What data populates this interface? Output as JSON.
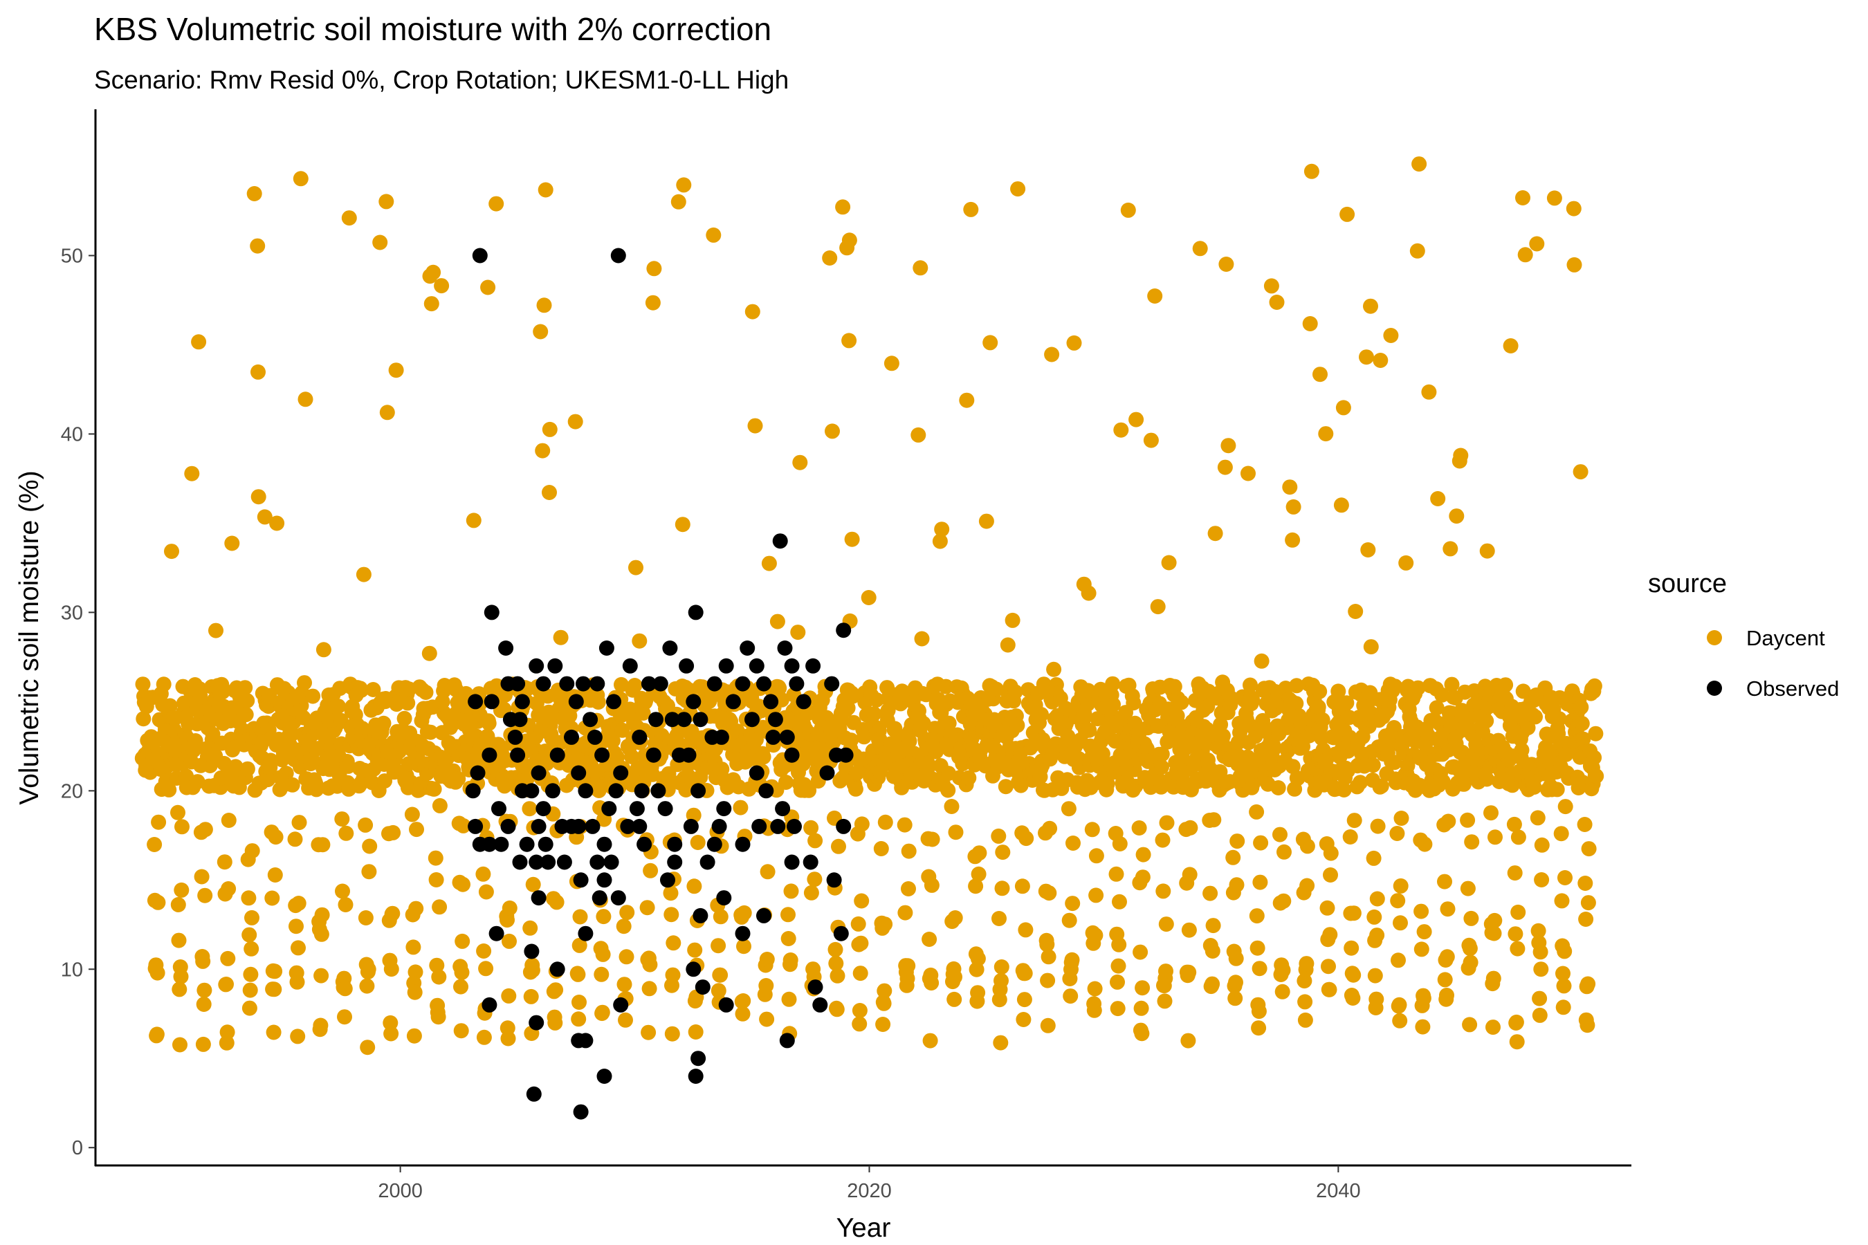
{
  "chart_data": {
    "type": "scatter",
    "title": "KBS Volumetric soil moisture with 2% correction",
    "subtitle": "Scenario: Rmv Resid 0%, Crop Rotation; UKESM1-0-LL High",
    "xlabel": "Year",
    "ylabel": "Volumetric soil moisture (%)",
    "xlim": [
      1987,
      2052.5
    ],
    "ylim": [
      -1,
      58.2
    ],
    "x_ticks": [
      2000,
      2020,
      2040
    ],
    "y_ticks": [
      0,
      10,
      20,
      30,
      40,
      50
    ],
    "grid": false,
    "legend": {
      "title": "source",
      "position": "right"
    },
    "series_style": [
      {
        "name": "Daycent",
        "color": "#E69F00"
      },
      {
        "name": "Observed",
        "color": "#000000"
      }
    ],
    "daycent_model": {
      "x_range": [
        1989,
        2051
      ],
      "baseline_band": [
        20,
        26
      ],
      "seasonal_minimum_range": [
        6,
        10
      ],
      "spike_maximum": 55.2,
      "note_points_daily": true
    },
    "observed_points": [
      [
        2003.4,
        50
      ],
      [
        2009.3,
        50
      ],
      [
        2016.2,
        34
      ],
      [
        2003.9,
        30
      ],
      [
        2012.6,
        30
      ],
      [
        2018.9,
        29
      ],
      [
        2004.5,
        28
      ],
      [
        2008.8,
        28
      ],
      [
        2011.5,
        28
      ],
      [
        2014.8,
        28
      ],
      [
        2016.4,
        28
      ],
      [
        2005.8,
        27
      ],
      [
        2006.6,
        27
      ],
      [
        2009.8,
        27
      ],
      [
        2012.2,
        27
      ],
      [
        2013.9,
        27
      ],
      [
        2015.2,
        27
      ],
      [
        2016.7,
        27
      ],
      [
        2017.6,
        27
      ],
      [
        2004.6,
        26
      ],
      [
        2005.0,
        26
      ],
      [
        2006.1,
        26
      ],
      [
        2007.1,
        26
      ],
      [
        2007.8,
        26
      ],
      [
        2008.4,
        26
      ],
      [
        2010.6,
        26
      ],
      [
        2011.1,
        26
      ],
      [
        2013.4,
        26
      ],
      [
        2014.6,
        26
      ],
      [
        2015.5,
        26
      ],
      [
        2016.9,
        26
      ],
      [
        2018.4,
        26
      ],
      [
        2003.2,
        25
      ],
      [
        2003.9,
        25
      ],
      [
        2005.2,
        25
      ],
      [
        2007.5,
        25
      ],
      [
        2009.1,
        25
      ],
      [
        2012.5,
        25
      ],
      [
        2014.2,
        25
      ],
      [
        2015.8,
        25
      ],
      [
        2017.2,
        25
      ],
      [
        2004.7,
        24
      ],
      [
        2005.1,
        24
      ],
      [
        2008.1,
        24
      ],
      [
        2010.9,
        24
      ],
      [
        2011.6,
        24
      ],
      [
        2012.1,
        24
      ],
      [
        2012.8,
        24
      ],
      [
        2015.0,
        24
      ],
      [
        2016.0,
        24
      ],
      [
        2004.9,
        23
      ],
      [
        2007.3,
        23
      ],
      [
        2008.3,
        23
      ],
      [
        2010.2,
        23
      ],
      [
        2013.3,
        23
      ],
      [
        2013.7,
        23
      ],
      [
        2015.9,
        23
      ],
      [
        2016.5,
        23
      ],
      [
        2003.8,
        22
      ],
      [
        2005.0,
        22
      ],
      [
        2006.7,
        22
      ],
      [
        2008.6,
        22
      ],
      [
        2010.8,
        22
      ],
      [
        2011.9,
        22
      ],
      [
        2012.3,
        22
      ],
      [
        2016.7,
        22
      ],
      [
        2018.6,
        22
      ],
      [
        2019.0,
        22
      ],
      [
        2003.3,
        21
      ],
      [
        2005.9,
        21
      ],
      [
        2007.6,
        21
      ],
      [
        2009.4,
        21
      ],
      [
        2015.2,
        21
      ],
      [
        2018.2,
        21
      ],
      [
        2003.1,
        20
      ],
      [
        2005.2,
        20
      ],
      [
        2005.6,
        20
      ],
      [
        2006.5,
        20
      ],
      [
        2007.9,
        20
      ],
      [
        2009.2,
        20
      ],
      [
        2010.3,
        20
      ],
      [
        2011.0,
        20
      ],
      [
        2012.7,
        20
      ],
      [
        2015.6,
        20
      ],
      [
        2004.2,
        19
      ],
      [
        2006.1,
        19
      ],
      [
        2008.9,
        19
      ],
      [
        2010.1,
        19
      ],
      [
        2011.3,
        19
      ],
      [
        2013.8,
        19
      ],
      [
        2016.3,
        19
      ],
      [
        2003.2,
        18
      ],
      [
        2004.6,
        18
      ],
      [
        2005.9,
        18
      ],
      [
        2006.9,
        18
      ],
      [
        2007.3,
        18
      ],
      [
        2007.6,
        18
      ],
      [
        2008.2,
        18
      ],
      [
        2009.7,
        18
      ],
      [
        2010.2,
        18
      ],
      [
        2012.4,
        18
      ],
      [
        2013.6,
        18
      ],
      [
        2015.3,
        18
      ],
      [
        2016.1,
        18
      ],
      [
        2016.8,
        18
      ],
      [
        2018.9,
        18
      ],
      [
        2003.4,
        17
      ],
      [
        2003.8,
        17
      ],
      [
        2004.3,
        17
      ],
      [
        2005.4,
        17
      ],
      [
        2006.2,
        17
      ],
      [
        2008.7,
        17
      ],
      [
        2010.4,
        17
      ],
      [
        2011.7,
        17
      ],
      [
        2013.4,
        17
      ],
      [
        2014.6,
        17
      ],
      [
        2005.1,
        16
      ],
      [
        2005.8,
        16
      ],
      [
        2006.3,
        16
      ],
      [
        2007.0,
        16
      ],
      [
        2008.4,
        16
      ],
      [
        2009.0,
        16
      ],
      [
        2011.7,
        16
      ],
      [
        2013.1,
        16
      ],
      [
        2016.7,
        16
      ],
      [
        2017.5,
        16
      ],
      [
        2007.7,
        15
      ],
      [
        2008.7,
        15
      ],
      [
        2011.4,
        15
      ],
      [
        2018.5,
        15
      ],
      [
        2005.9,
        14
      ],
      [
        2008.5,
        14
      ],
      [
        2009.3,
        14
      ],
      [
        2013.8,
        14
      ],
      [
        2012.8,
        13
      ],
      [
        2015.5,
        13
      ],
      [
        2004.1,
        12
      ],
      [
        2007.9,
        12
      ],
      [
        2014.6,
        12
      ],
      [
        2018.8,
        12
      ],
      [
        2005.6,
        11
      ],
      [
        2006.7,
        10
      ],
      [
        2012.5,
        10
      ],
      [
        2012.9,
        9
      ],
      [
        2017.7,
        9
      ],
      [
        2003.8,
        8
      ],
      [
        2009.4,
        8
      ],
      [
        2013.9,
        8
      ],
      [
        2017.9,
        8
      ],
      [
        2005.8,
        7
      ],
      [
        2007.6,
        6
      ],
      [
        2007.9,
        6
      ],
      [
        2016.5,
        6
      ],
      [
        2012.7,
        5
      ],
      [
        2012.6,
        4
      ],
      [
        2008.7,
        4
      ],
      [
        2005.7,
        3
      ],
      [
        2007.7,
        2
      ]
    ]
  }
}
